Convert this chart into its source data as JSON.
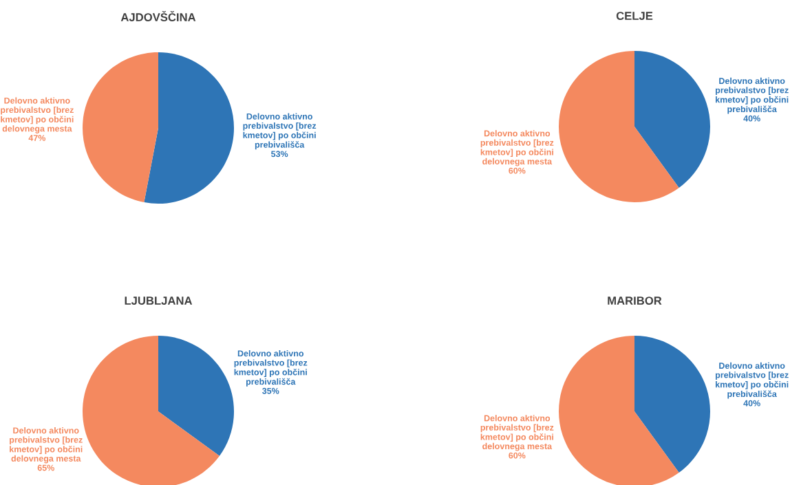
{
  "chart_data": [
    {
      "type": "pie",
      "title": "AJDOVŠČINA",
      "categories": [
        "Delovno aktivno prebivalstvo [brez kmetov] po občini prebivališča",
        "Delovno aktivno prebivalstvo [brez kmetov] po občini delovnega mesta"
      ],
      "values": [
        53,
        47
      ],
      "colors": [
        "#2e75b6",
        "#f4895f"
      ],
      "value_labels": [
        "53%",
        "47%"
      ]
    },
    {
      "type": "pie",
      "title": "CELJE",
      "categories": [
        "Delovno aktivno prebivalstvo [brez kmetov] po občini prebivališča",
        "Delovno aktivno prebivalstvo [brez kmetov] po občini delovnega mesta"
      ],
      "values": [
        40,
        60
      ],
      "colors": [
        "#2e75b6",
        "#f4895f"
      ],
      "value_labels": [
        "40%",
        "60%"
      ]
    },
    {
      "type": "pie",
      "title": "LJUBLJANA",
      "categories": [
        "Delovno aktivno prebivalstvo [brez kmetov] po občini prebivališča",
        "Delovno aktivno prebivalstvo [brez kmetov] po občini delovnega mesta"
      ],
      "values": [
        35,
        65
      ],
      "colors": [
        "#2e75b6",
        "#f4895f"
      ],
      "value_labels": [
        "35%",
        "65%"
      ]
    },
    {
      "type": "pie",
      "title": "MARIBOR",
      "categories": [
        "Delovno aktivno prebivalstvo [brez kmetov] po občini prebivališča",
        "Delovno aktivno prebivalstvo [brez kmetov] po občini delovnega mesta"
      ],
      "values": [
        40,
        60
      ],
      "colors": [
        "#2e75b6",
        "#f4895f"
      ],
      "value_labels": [
        "40%",
        "60%"
      ]
    }
  ]
}
